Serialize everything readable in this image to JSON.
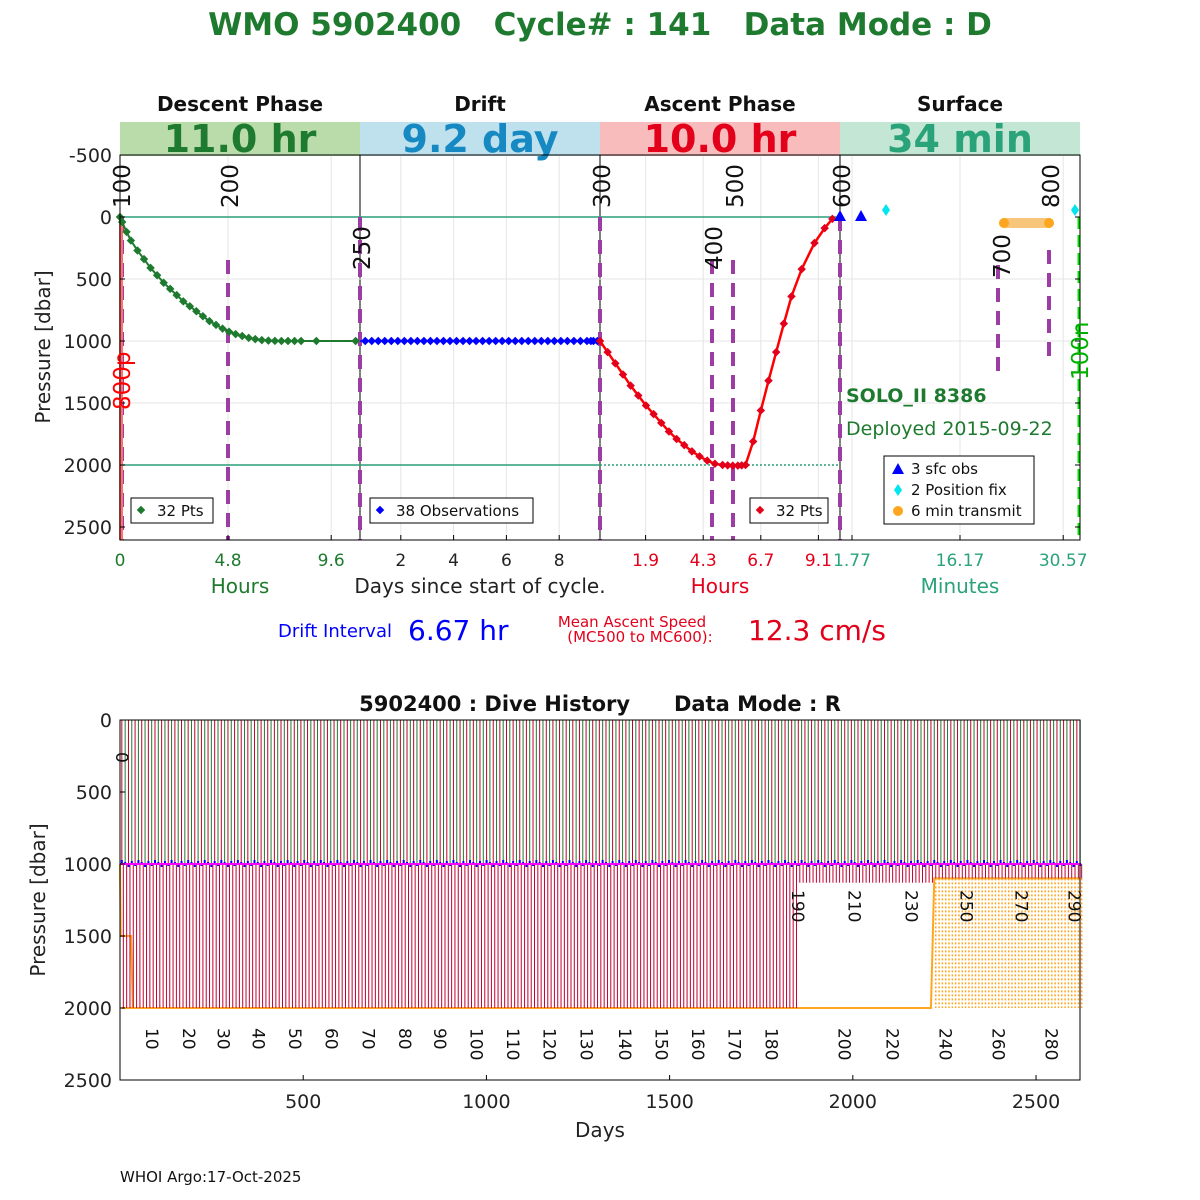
{
  "title": {
    "text": "WMO 5902400   Cycle# : 141   Data Mode : D",
    "color": "#1e7a2e"
  },
  "chart_data": [
    {
      "type": "line",
      "panel": "cycle",
      "y_axis": {
        "label": "Pressure [dbar]",
        "ticks": [
          "-500",
          "0",
          "500",
          "1000",
          "1500",
          "2000",
          "2500"
        ],
        "tick_values": [
          -500,
          0,
          500,
          1000,
          1500,
          2000,
          2500
        ],
        "reversed": true,
        "ylim": [
          -750,
          2600
        ]
      },
      "phases": [
        {
          "name": "Descent Phase",
          "duration": "11.0 hr",
          "band_color": "#b9dcaa",
          "value_color": "#1e7a2e",
          "unit_label": "Hours",
          "unit_color": "#1e7a2e",
          "tick_labels": [
            "0",
            "4.8",
            "9.6"
          ],
          "tick_fracs": [
            0.0,
            0.45,
            0.88
          ],
          "tick_color": "#1e7a2e",
          "legend": "32 Pts",
          "legend_color": "#1e7a2e",
          "elapsed_hours": [
            0,
            0.1,
            0.3,
            0.5,
            0.8,
            1.1,
            1.4,
            1.7,
            2.0,
            2.3,
            2.6,
            2.9,
            3.2,
            3.5,
            3.8,
            4.1,
            4.4,
            4.7,
            5.0,
            5.3,
            5.6,
            5.9,
            6.2,
            6.5,
            6.8,
            7.1,
            7.4,
            7.7,
            8.0,
            8.3,
            9.0,
            10.8
          ],
          "pressure": [
            0,
            40,
            120,
            190,
            270,
            340,
            410,
            470,
            530,
            580,
            630,
            680,
            720,
            760,
            800,
            840,
            870,
            900,
            925,
            945,
            960,
            975,
            985,
            993,
            997,
            999,
            1000,
            1000,
            1000,
            1000,
            1000,
            1000
          ]
        },
        {
          "name": "Drift",
          "duration": "9.2 day",
          "band_color": "#bfe1ee",
          "value_color": "#1789c2",
          "unit_label": "Days since start of cycle.",
          "unit_color": "#222222",
          "tick_labels": [
            "2",
            "4",
            "6",
            "8"
          ],
          "tick_fracs": [
            0.17,
            0.39,
            0.61,
            0.83
          ],
          "tick_color": "#222222",
          "legend": "38 Observations",
          "legend_color": "#0000ff",
          "days": [
            0.2,
            0.45,
            0.7,
            0.95,
            1.2,
            1.45,
            1.7,
            1.95,
            2.2,
            2.45,
            2.7,
            2.95,
            3.2,
            3.45,
            3.7,
            3.95,
            4.2,
            4.45,
            4.7,
            4.95,
            5.2,
            5.45,
            5.7,
            5.95,
            6.2,
            6.45,
            6.7,
            6.95,
            7.2,
            7.45,
            7.7,
            7.95,
            8.2,
            8.45,
            8.7,
            8.85,
            8.95,
            9.1
          ],
          "pressure": [
            1000,
            1000,
            1000,
            1000,
            1000,
            1000,
            1000,
            1000,
            1000,
            1000,
            1000,
            1000,
            1000,
            1000,
            1000,
            1000,
            1000,
            1000,
            1000,
            1000,
            1000,
            1000,
            1000,
            1000,
            1000,
            1000,
            1000,
            1000,
            1000,
            1000,
            1000,
            1000,
            1000,
            1000,
            1000,
            1000,
            1000,
            1000
          ]
        },
        {
          "name": "Ascent Phase",
          "duration": "10.0 hr",
          "band_color": "#f9bcbc",
          "value_color": "#e3001b",
          "unit_label": "Hours",
          "unit_color": "#e3001b",
          "tick_labels": [
            "1.9",
            "4.3",
            "6.7",
            "9.1"
          ],
          "tick_fracs": [
            0.19,
            0.43,
            0.67,
            0.91
          ],
          "tick_color": "#e3001b",
          "legend": "32 Pts",
          "legend_color": "#e3001b",
          "elapsed_hours": [
            0,
            0.3,
            0.6,
            0.9,
            1.2,
            1.5,
            1.8,
            2.1,
            2.4,
            2.7,
            3.0,
            3.3,
            3.6,
            3.9,
            4.2,
            4.5,
            4.8,
            5.0,
            5.2,
            5.4,
            5.55,
            5.7,
            6.0,
            6.3,
            6.6,
            6.9,
            7.2,
            7.5,
            7.9,
            8.4,
            8.8,
            9.1
          ],
          "pressure": [
            1000,
            1090,
            1180,
            1270,
            1360,
            1440,
            1520,
            1590,
            1660,
            1730,
            1790,
            1840,
            1890,
            1930,
            1965,
            1990,
            2000,
            2003,
            2005,
            2005,
            2003,
            2000,
            1810,
            1560,
            1320,
            1090,
            860,
            640,
            420,
            210,
            90,
            15
          ]
        },
        {
          "name": "Surface",
          "duration": "34 min",
          "band_color": "#c4e7d5",
          "value_color": "#2ba37a",
          "unit_label": "Minutes",
          "unit_color": "#2ba37a",
          "tick_labels": [
            "1.77",
            "16.17",
            "30.57"
          ],
          "tick_fracs": [
            0.05,
            0.5,
            0.93
          ],
          "tick_color": "#2ba37a",
          "legend_items": [
            "3 sfc obs",
            "2 Position fix",
            "6 min transmit"
          ],
          "legend_colors": [
            "#0000ff",
            "#00e5ee",
            "#ffa620"
          ]
        }
      ],
      "mc_labels": [
        "100",
        "200",
        "250",
        "300",
        "400",
        "500",
        "600",
        "700",
        "800",
        "800p",
        "100n"
      ],
      "float_label": "SOLO_II 8386",
      "deployed_label": "Deployed 2015-09-22",
      "drift_interval_label": "Drift Interval",
      "drift_interval_value": "6.67 hr",
      "ascent_speed_label_line1": "Mean Ascent Speed",
      "ascent_speed_label_line2": "(MC500 to MC600):",
      "ascent_speed_value": "12.3 cm/s"
    },
    {
      "type": "bar",
      "panel": "dive_history",
      "title": "5902400 : Dive History      Data Mode : R",
      "xlabel": "Days",
      "ylabel": "Pressure [dbar]",
      "xlim": [
        0,
        2620
      ],
      "ylim": [
        0,
        2500
      ],
      "x_ticks": [
        "500",
        "1000",
        "1500",
        "2000",
        "2500"
      ],
      "x_tick_values": [
        500,
        1000,
        1500,
        2000,
        2500
      ],
      "y_ticks": [
        "0",
        "500",
        "1000",
        "1500",
        "2000",
        "2500"
      ],
      "y_tick_values": [
        0,
        500,
        1000,
        1500,
        2000,
        2500
      ],
      "cycle_labels_lower": [
        "10",
        "20",
        "30",
        "40",
        "50",
        "60",
        "70",
        "80",
        "90",
        "100",
        "110",
        "120",
        "130",
        "140",
        "150",
        "160",
        "170",
        "180",
        "200",
        "220",
        "240",
        "260",
        "280"
      ],
      "cycle_labels_lower_days": [
        55,
        155,
        250,
        345,
        445,
        545,
        645,
        745,
        840,
        940,
        1040,
        1140,
        1240,
        1345,
        1445,
        1545,
        1645,
        1745,
        1945,
        2075,
        2220,
        2365,
        2510
      ],
      "cycle_labels_upper": [
        "0",
        "190",
        "210",
        "230",
        "250",
        "270",
        "290"
      ],
      "cycle_labels_upper_days": [
        5,
        1850,
        2005,
        2160,
        2310,
        2460,
        2605
      ],
      "parking_pressure": 1000,
      "profile_pressure_early": 2000,
      "profile_pressure_late": 1100,
      "late_transition_day": 2220,
      "shallow_gap_start_day": 1850,
      "num_cycles": 290,
      "colors": {
        "descent": "#1e7a2e",
        "ascent": "#c2002f",
        "drift": "#ff00ff",
        "drift_points": "#0000ff",
        "profile": "#ffa620"
      }
    }
  ],
  "footer": "WHOI Argo:17-Oct-2025"
}
